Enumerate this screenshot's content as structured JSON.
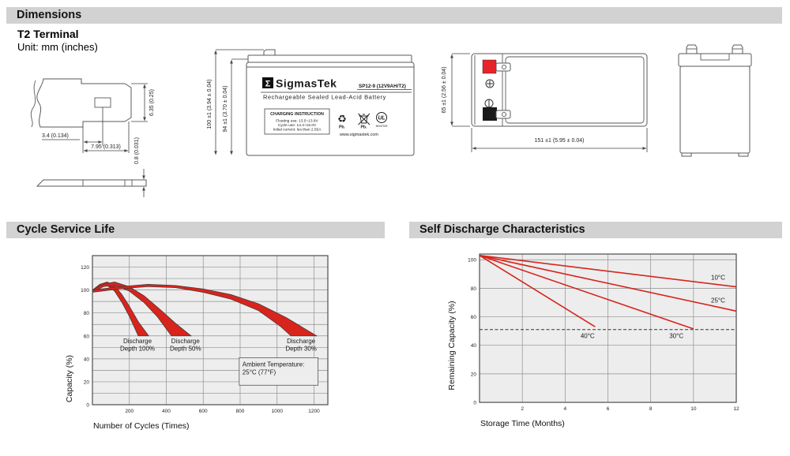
{
  "header": {
    "dimensions_title": "Dimensions",
    "terminal_type": "T2 Terminal",
    "unit_note": "Unit: mm (inches)"
  },
  "terminal_drawing": {
    "dim_height": "6.35 (0.25)",
    "dim_offset": "3.4 (0.134)",
    "dim_width": "7.95 (0.313)",
    "dim_thickness": "0.8 (0.031)"
  },
  "front_view": {
    "dim_total_height": "100 ±1 (3.94 ± 0.04)",
    "dim_case_height": "94 ±1 (3.70 ± 0.04)",
    "brand_sigma": "Σ",
    "brand": "SigmasTek",
    "model": "SP12-9 (12V9AH/T2)",
    "type_line": "Rechargeable Sealed Lead-Acid Battery",
    "charging_title": "CHARGING INSTRUCTION",
    "charging_lines": [
      "Floating use: 13.5~13.8V",
      "Cycle use: 14.4~15.0V",
      "Initial current: les than 2.55A"
    ],
    "recycle_glyph": "♻",
    "pb_recycle": "Pb.",
    "pb_trash": "Pb.",
    "ul_mark": "UL",
    "ul_number": "MH47929",
    "website": "www.sigmastek.com"
  },
  "top_view": {
    "dim_height": "65 ±1 (2.56 ± 0.04)",
    "dim_length": "151 ±1 (5.95 ± 0.04)"
  },
  "section_titles": {
    "cycle": "Cycle Service Life",
    "self_discharge": "Self Discharge Characteristics"
  },
  "chart_data": [
    {
      "type": "area",
      "title": "Cycle Service Life",
      "xlabel": "Number of Cycles (Times)",
      "ylabel": "Capacity (%)",
      "xlim": [
        0,
        1275
      ],
      "ylim": [
        0,
        130
      ],
      "xticks": [
        200,
        400,
        600,
        800,
        1000,
        1200
      ],
      "yticks": [
        0,
        20,
        40,
        60,
        80,
        100,
        120
      ],
      "grid": {
        "x_step": 200,
        "y_step": 10
      },
      "legend": "none",
      "colors": {
        "bg": "#ededed",
        "grid": "#8f8f8f",
        "border": "#4d4d4d",
        "accent": "#d7241d"
      },
      "bands": [
        {
          "name": "Discharge Depth 100%",
          "label": [
            "Discharge",
            "Depth 100%"
          ],
          "label_pos": [
            244,
            53.5
          ],
          "upper": [
            [
              0,
              100
            ],
            [
              40,
              105
            ],
            [
              80,
              107
            ],
            [
              120,
              104
            ],
            [
              160,
              96
            ],
            [
              200,
              86
            ],
            [
              250,
              72
            ],
            [
              305,
              60
            ]
          ],
          "lower": [
            [
              0,
              98
            ],
            [
              40,
              103
            ],
            [
              80,
              104
            ],
            [
              120,
              99
            ],
            [
              160,
              89
            ],
            [
              200,
              77
            ],
            [
              248,
              60
            ]
          ]
        },
        {
          "name": "Discharge Depth 50%",
          "label": [
            "Discharge",
            "Depth 50%"
          ],
          "label_pos": [
            504,
            53.5
          ],
          "upper": [
            [
              0,
              100
            ],
            [
              60,
              105
            ],
            [
              120,
              107
            ],
            [
              200,
              103
            ],
            [
              280,
              95
            ],
            [
              360,
              84
            ],
            [
              450,
              71
            ],
            [
              535,
              60
            ]
          ],
          "lower": [
            [
              0,
              98
            ],
            [
              60,
              103
            ],
            [
              120,
              104
            ],
            [
              200,
              99
            ],
            [
              280,
              89
            ],
            [
              350,
              77
            ],
            [
              428,
              60
            ]
          ]
        },
        {
          "name": "Discharge Depth 30%",
          "label": [
            "Discharge",
            "Depth 30%"
          ],
          "label_pos": [
            1130,
            53.5
          ],
          "upper": [
            [
              0,
              100
            ],
            [
              150,
              103
            ],
            [
              300,
              105
            ],
            [
              450,
              104
            ],
            [
              600,
              101
            ],
            [
              750,
              96
            ],
            [
              900,
              88
            ],
            [
              1050,
              76
            ],
            [
              1215,
              60
            ]
          ],
          "lower": [
            [
              0,
              98
            ],
            [
              150,
              101
            ],
            [
              300,
              103
            ],
            [
              450,
              102
            ],
            [
              600,
              98
            ],
            [
              750,
              92
            ],
            [
              900,
              82
            ],
            [
              1020,
              68
            ],
            [
              1075,
              60
            ]
          ]
        }
      ],
      "annotation": {
        "lines": [
          "Ambient Temperature:",
          "25°C (77°F)"
        ],
        "x1": 795,
        "y1": 17,
        "x2": 1222,
        "y2": 41
      }
    },
    {
      "type": "line",
      "title": "Self Discharge Characteristics",
      "xlabel": "Storage Time (Months)",
      "ylabel": "Remaining Capacity (%)",
      "xlim": [
        0,
        12
      ],
      "ylim": [
        0,
        104
      ],
      "xticks": [
        2,
        4,
        6,
        8,
        10,
        12
      ],
      "yticks": [
        0,
        20,
        40,
        60,
        80,
        100
      ],
      "grid": {
        "x_step": 2,
        "y_step": 20
      },
      "legend": "none",
      "colors": {
        "bg": "#ededed",
        "grid": "#8f8f8f",
        "border": "#4d4d4d",
        "accent": "#d7241d"
      },
      "dashed_line_y": 51,
      "series": [
        {
          "name": "10°C",
          "points": [
            [
              0,
              103
            ],
            [
              12,
              81
            ]
          ],
          "label_pos": [
            11.15,
            86
          ]
        },
        {
          "name": "25°C",
          "points": [
            [
              0,
              103
            ],
            [
              12,
              64
            ]
          ],
          "label_pos": [
            11.15,
            70
          ]
        },
        {
          "name": "30°C",
          "points": [
            [
              0,
              103
            ],
            [
              10,
              51.5
            ]
          ],
          "label_pos": [
            9.2,
            45
          ]
        },
        {
          "name": "40°C",
          "points": [
            [
              0,
              103
            ],
            [
              5.4,
              53
            ]
          ],
          "label_pos": [
            5.05,
            45
          ]
        }
      ]
    }
  ]
}
